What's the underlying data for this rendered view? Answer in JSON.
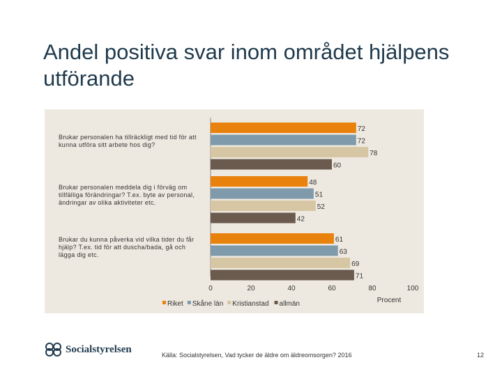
{
  "slide": {
    "title": "Andel positiva svar inom området hjälpens utförande",
    "source": "Källa: Socialstyrelsen, Vad tycker de äldre om äldreomsorgen? 2016",
    "page_number": "12",
    "logo_text": "Socialstyrelsen"
  },
  "chart_data": {
    "type": "bar",
    "orientation": "horizontal",
    "title": "",
    "xlabel": "Procent",
    "xlim": [
      0,
      100
    ],
    "xticks": [
      0,
      20,
      40,
      60,
      80,
      100
    ],
    "categories": [
      "Brukar personalen ha tillräckligt med tid för att kunna utföra sitt arbete hos dig?",
      "Brukar personalen meddela dig i förväg om tillfälliga förändringar? T.ex. byte av personal, ändringar av olika aktiviteter etc.",
      "Brukar du kunna påverka vid vilka tider du får hjälp? T.ex. tid för att duscha/bada, gå och lägga dig etc."
    ],
    "series": [
      {
        "name": "Riket",
        "color": "#e8820c",
        "values": [
          72,
          48,
          61
        ]
      },
      {
        "name": "Skåne län",
        "color": "#7f9aab",
        "values": [
          72,
          51,
          63
        ]
      },
      {
        "name": "Kristianstad",
        "color": "#d6c6a3",
        "values": [
          78,
          52,
          69
        ]
      },
      {
        "name": "allmän",
        "color": "#6b5a4e",
        "values": [
          60,
          42,
          71
        ]
      }
    ],
    "legend_position": "bottom"
  }
}
